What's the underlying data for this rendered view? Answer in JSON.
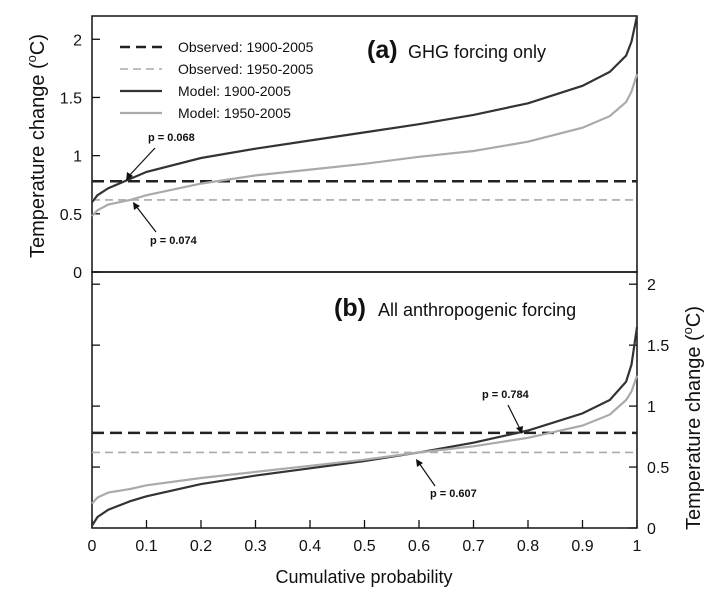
{
  "chart_data": [
    {
      "type": "line",
      "panel_label": "(a)",
      "title": "GHG forcing only",
      "ylabel": "Temperature change (°C)",
      "ylabel_text": "Temperature change (",
      "ylabel_unit": "C)",
      "ylabel_degree": "o",
      "xlim": [
        0,
        1
      ],
      "ylim": [
        0,
        2.2
      ],
      "yticks": [
        "0",
        "0.5",
        "1",
        "1.5",
        "2"
      ],
      "series": [
        {
          "name": "Observed: 1900-2005",
          "style": "dashed",
          "color": "#222222",
          "x": [
            0,
            1
          ],
          "y": [
            0.78,
            0.78
          ]
        },
        {
          "name": "Observed: 1950-2005",
          "style": "dashed",
          "color": "#aaaaaa",
          "x": [
            0,
            1
          ],
          "y": [
            0.62,
            0.62
          ]
        },
        {
          "name": "Model: 1900-2005",
          "style": "solid",
          "color": "#333333",
          "x": [
            0,
            0.01,
            0.03,
            0.07,
            0.1,
            0.2,
            0.3,
            0.4,
            0.5,
            0.6,
            0.7,
            0.8,
            0.9,
            0.95,
            0.98,
            0.99,
            1
          ],
          "y": [
            0.6,
            0.66,
            0.72,
            0.8,
            0.86,
            0.98,
            1.06,
            1.13,
            1.2,
            1.27,
            1.35,
            1.45,
            1.6,
            1.72,
            1.86,
            1.98,
            2.2
          ]
        },
        {
          "name": "Model: 1950-2005",
          "style": "solid",
          "color": "#aaaaaa",
          "x": [
            0,
            0.01,
            0.03,
            0.07,
            0.1,
            0.2,
            0.3,
            0.4,
            0.5,
            0.6,
            0.7,
            0.8,
            0.9,
            0.95,
            0.98,
            0.99,
            1
          ],
          "y": [
            0.48,
            0.53,
            0.58,
            0.62,
            0.66,
            0.76,
            0.83,
            0.88,
            0.93,
            0.99,
            1.04,
            1.12,
            1.24,
            1.34,
            1.46,
            1.55,
            1.7
          ]
        }
      ],
      "annotations": [
        {
          "text": "p = 0.068",
          "x": 0.065,
          "y": 0.78
        },
        {
          "text": "p = 0.074",
          "x": 0.07,
          "y": 0.62
        }
      ]
    },
    {
      "type": "line",
      "panel_label": "(b)",
      "title": "All anthropogenic forcing",
      "xlabel": "Cumulative probability",
      "ylabel": "Temperature change (°C)",
      "ylabel_text": "Temperature change (",
      "ylabel_unit": "C)",
      "ylabel_degree": "o",
      "xlim": [
        0,
        1
      ],
      "ylim": [
        0,
        2.1
      ],
      "xticks": [
        "0",
        "0.1",
        "0.2",
        "0.3",
        "0.4",
        "0.5",
        "0.6",
        "0.7",
        "0.8",
        "0.9",
        "1"
      ],
      "yticks": [
        "0",
        "0.5",
        "1",
        "1.5",
        "2"
      ],
      "series": [
        {
          "name": "Observed: 1900-2005",
          "style": "dashed",
          "color": "#222222",
          "x": [
            0,
            1
          ],
          "y": [
            0.78,
            0.78
          ]
        },
        {
          "name": "Observed: 1950-2005",
          "style": "dashed",
          "color": "#aaaaaa",
          "x": [
            0,
            1
          ],
          "y": [
            0.62,
            0.62
          ]
        },
        {
          "name": "Model: 1900-2005",
          "style": "solid",
          "color": "#333333",
          "x": [
            0,
            0.01,
            0.03,
            0.07,
            0.1,
            0.2,
            0.3,
            0.4,
            0.5,
            0.6,
            0.7,
            0.8,
            0.9,
            0.95,
            0.98,
            0.99,
            1
          ],
          "y": [
            0.02,
            0.09,
            0.15,
            0.22,
            0.26,
            0.36,
            0.43,
            0.49,
            0.55,
            0.62,
            0.7,
            0.8,
            0.94,
            1.05,
            1.2,
            1.34,
            1.65
          ]
        },
        {
          "name": "Model: 1950-2005",
          "style": "solid",
          "color": "#aaaaaa",
          "x": [
            0,
            0.01,
            0.03,
            0.07,
            0.1,
            0.2,
            0.3,
            0.4,
            0.5,
            0.6,
            0.7,
            0.8,
            0.9,
            0.95,
            0.98,
            0.99,
            1
          ],
          "y": [
            0.2,
            0.25,
            0.29,
            0.32,
            0.35,
            0.41,
            0.46,
            0.51,
            0.56,
            0.62,
            0.67,
            0.74,
            0.84,
            0.93,
            1.05,
            1.12,
            1.25
          ]
        }
      ],
      "annotations": [
        {
          "text": "p = 0.784",
          "x": 0.8,
          "y": 0.78
        },
        {
          "text": "p = 0.607",
          "x": 0.6,
          "y": 0.62
        }
      ]
    }
  ]
}
